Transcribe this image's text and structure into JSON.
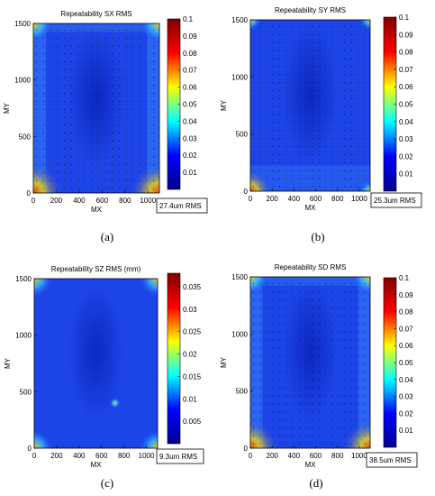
{
  "panels": [
    {
      "caption": "(a)",
      "title": "Repeatability SX RMS",
      "summary": "27.4um RMS"
    },
    {
      "caption": "(b)",
      "title": "Repeatability SY RMS",
      "summary": "25.3um RMS"
    },
    {
      "caption": "(c)",
      "title": "Repeatability SZ RMS (mm)",
      "summary": "9.3um RMS"
    },
    {
      "caption": "(d)",
      "title": "Repeatability SD RMS",
      "summary": "38.5um RMS"
    }
  ],
  "colors": {
    "jet": [
      "#00008f",
      "#0000ff",
      "#00ffff",
      "#ffff00",
      "#ff0000",
      "#800000"
    ]
  },
  "chart_data": [
    {
      "type": "heatmap",
      "title": "Repeatability SX RMS",
      "xlabel": "MX",
      "ylabel": "MY",
      "xlim": [
        0,
        1100
      ],
      "ylim": [
        0,
        1500
      ],
      "xticks": [
        0,
        200,
        400,
        600,
        800,
        1000
      ],
      "yticks": [
        0,
        500,
        1000,
        1500
      ],
      "colorbar": {
        "min": 0,
        "max": 0.1,
        "ticks": [
          0.01,
          0.02,
          0.03,
          0.04,
          0.05,
          0.06,
          0.07,
          0.08,
          0.09,
          0.1
        ]
      },
      "measurement_grid": true,
      "pattern": "mostly 0.015-0.03; hot spots ~0.08 at bottom corners; lighter vertical bands along left and right edges",
      "annotation": "27.4um RMS"
    },
    {
      "type": "heatmap",
      "title": "Repeatability SY RMS",
      "xlabel": "MX",
      "ylabel": "MY",
      "xlim": [
        0,
        1100
      ],
      "ylim": [
        0,
        1500
      ],
      "xticks": [
        0,
        200,
        400,
        600,
        800,
        1000
      ],
      "yticks": [
        0,
        500,
        1000,
        1500
      ],
      "colorbar": {
        "min": 0,
        "max": 0.1,
        "ticks": [
          0.01,
          0.02,
          0.03,
          0.04,
          0.05,
          0.06,
          0.07,
          0.08,
          0.09,
          0.1
        ]
      },
      "measurement_grid": true,
      "pattern": "mostly 0.015-0.03; small hot spot ~0.06 at bottom-left corner",
      "annotation": "25.3um RMS"
    },
    {
      "type": "heatmap",
      "title": "Repeatability SZ RMS (mm)",
      "xlabel": "MX",
      "ylabel": "MY",
      "xlim": [
        0,
        1100
      ],
      "ylim": [
        0,
        1500
      ],
      "xticks": [
        0,
        200,
        400,
        600,
        800,
        1000
      ],
      "yticks": [
        0,
        500,
        1000,
        1500
      ],
      "colorbar": {
        "min": 0,
        "max": 0.038,
        "ticks": [
          0.005,
          0.01,
          0.015,
          0.02,
          0.025,
          0.03,
          0.035
        ]
      },
      "measurement_grid": false,
      "pattern": "mostly 0.005-0.012; hot spots ~0.03 at corners",
      "annotation": "9.3um RMS"
    },
    {
      "type": "heatmap",
      "title": "Repeatability SD RMS",
      "xlabel": "MX",
      "ylabel": "MY",
      "xlim": [
        0,
        1100
      ],
      "ylim": [
        0,
        1500
      ],
      "xticks": [
        0,
        200,
        400,
        600,
        800,
        1000
      ],
      "yticks": [
        0,
        500,
        1000,
        1500
      ],
      "colorbar": {
        "min": 0,
        "max": 0.1,
        "ticks": [
          0.01,
          0.02,
          0.03,
          0.04,
          0.05,
          0.06,
          0.07,
          0.08,
          0.09,
          0.1
        ]
      },
      "measurement_grid": true,
      "pattern": "mostly 0.02-0.035; hot spots ~0.08 at bottom corners; lighter along the edges",
      "annotation": "38.5um RMS"
    }
  ]
}
